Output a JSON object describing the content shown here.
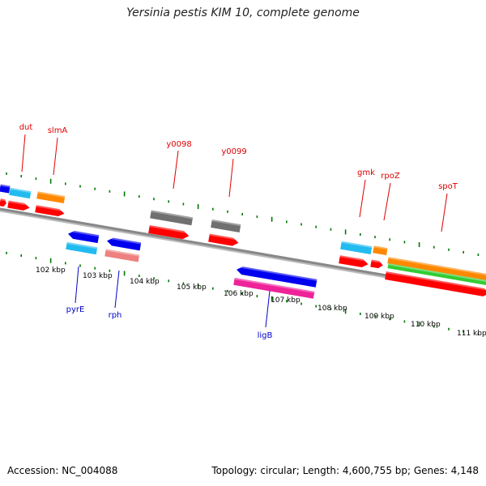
{
  "title": "Yersinia pestis KIM 10, complete genome",
  "footer": {
    "accession": "Accession: NC_004088",
    "summary": "Topology: circular; Length: 4,600,755 bp; Genes: 4,148"
  },
  "colors": {
    "red": "#ff0000",
    "blue": "#0000ee",
    "cyan": "#22bbf0",
    "orange": "#ff8800",
    "gray": "#707070",
    "pink": "#ee2299",
    "salmon": "#ee8080",
    "green": "#33cc33",
    "tick": "#007700",
    "backbone": "#888888",
    "label_forward": "#dd0000",
    "label_reverse": "#0000cc"
  },
  "ticks": [
    {
      "label": "102 kbp"
    },
    {
      "label": "103 kbp"
    },
    {
      "label": "104 kbp"
    },
    {
      "label": "105 kbp"
    },
    {
      "label": "106 kbp"
    },
    {
      "label": "107 kbp"
    },
    {
      "label": "108 kbp"
    },
    {
      "label": "109 kbp"
    },
    {
      "label": "110 kbp"
    },
    {
      "label": "111 kbp"
    }
  ],
  "gene_labels": [
    {
      "name": "dut",
      "strand": "forward"
    },
    {
      "name": "slmA",
      "strand": "forward"
    },
    {
      "name": "y0098",
      "strand": "forward"
    },
    {
      "name": "y0099",
      "strand": "forward"
    },
    {
      "name": "gmk",
      "strand": "forward"
    },
    {
      "name": "rpoZ",
      "strand": "forward"
    },
    {
      "name": "spoT",
      "strand": "forward"
    },
    {
      "name": "pyrE",
      "strand": "reverse"
    },
    {
      "name": "rph",
      "strand": "reverse"
    },
    {
      "name": "ligB",
      "strand": "reverse"
    }
  ]
}
